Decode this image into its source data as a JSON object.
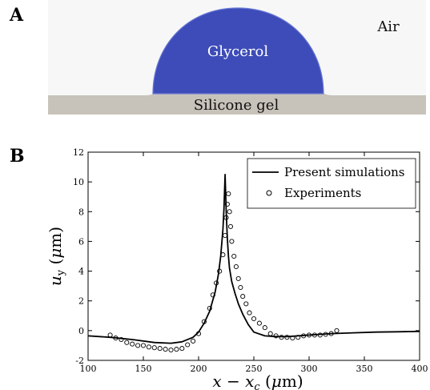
{
  "panel_a": {
    "label": "A",
    "drop_label": "Glycerol",
    "ambient_label": "Air",
    "substrate_label": "Silicone gel",
    "colors": {
      "drop": "#3d4cb8",
      "substrate": "#c8c3ba",
      "background": "#f7f7f7"
    }
  },
  "panel_b": {
    "label": "B"
  },
  "chart_data": {
    "type": "line",
    "xlabel_parts": [
      "x",
      " − ",
      "x",
      "c",
      " (",
      "μ",
      "m)"
    ],
    "ylabel_parts": [
      "u",
      "y",
      " (",
      "μ",
      "m)"
    ],
    "xlim": [
      100,
      400
    ],
    "ylim": [
      -2,
      12
    ],
    "xticks": [
      100,
      150,
      200,
      250,
      300,
      350,
      400
    ],
    "yticks": [
      -2,
      0,
      2,
      4,
      6,
      8,
      10,
      12
    ],
    "legend_position": "top-right",
    "grid": false,
    "series": [
      {
        "name": "Present  simulations",
        "style": "solid-line",
        "x": [
          100,
          120,
          140,
          160,
          175,
          185,
          195,
          200,
          205,
          210,
          215,
          218,
          220,
          222,
          223,
          224,
          225,
          226,
          227,
          228,
          230,
          233,
          236,
          240,
          245,
          250,
          260,
          270,
          280,
          290,
          300,
          320,
          340,
          360,
          380,
          400
        ],
        "y": [
          -0.35,
          -0.45,
          -0.6,
          -0.8,
          -0.85,
          -0.75,
          -0.45,
          -0.1,
          0.5,
          1.3,
          2.6,
          3.8,
          5.0,
          6.8,
          8.2,
          10.5,
          8.0,
          6.2,
          5.0,
          4.2,
          3.3,
          2.5,
          1.8,
          1.1,
          0.4,
          -0.1,
          -0.35,
          -0.4,
          -0.4,
          -0.35,
          -0.3,
          -0.2,
          -0.15,
          -0.1,
          -0.08,
          -0.05
        ]
      },
      {
        "name": "Experiments",
        "style": "open-circle",
        "x": [
          120,
          125,
          130,
          135,
          140,
          145,
          150,
          155,
          160,
          165,
          170,
          175,
          180,
          185,
          190,
          195,
          200,
          205,
          210,
          213,
          216,
          219,
          222,
          224,
          225,
          226,
          227,
          228,
          229,
          230,
          232,
          234,
          236,
          238,
          240,
          243,
          246,
          250,
          255,
          260,
          265,
          270,
          275,
          280,
          285,
          290,
          295,
          300,
          305,
          310,
          315,
          320,
          325
        ],
        "y": [
          -0.3,
          -0.5,
          -0.6,
          -0.8,
          -0.9,
          -1.0,
          -1.0,
          -1.1,
          -1.15,
          -1.2,
          -1.25,
          -1.3,
          -1.25,
          -1.2,
          -0.95,
          -0.7,
          -0.2,
          0.6,
          1.5,
          2.4,
          3.2,
          4.0,
          5.1,
          6.4,
          7.6,
          8.5,
          9.2,
          8.0,
          7.0,
          6.0,
          5.0,
          4.3,
          3.5,
          2.9,
          2.3,
          1.8,
          1.2,
          0.8,
          0.5,
          0.2,
          -0.2,
          -0.35,
          -0.45,
          -0.45,
          -0.5,
          -0.45,
          -0.35,
          -0.3,
          -0.3,
          -0.3,
          -0.25,
          -0.2,
          0.0
        ]
      }
    ]
  }
}
